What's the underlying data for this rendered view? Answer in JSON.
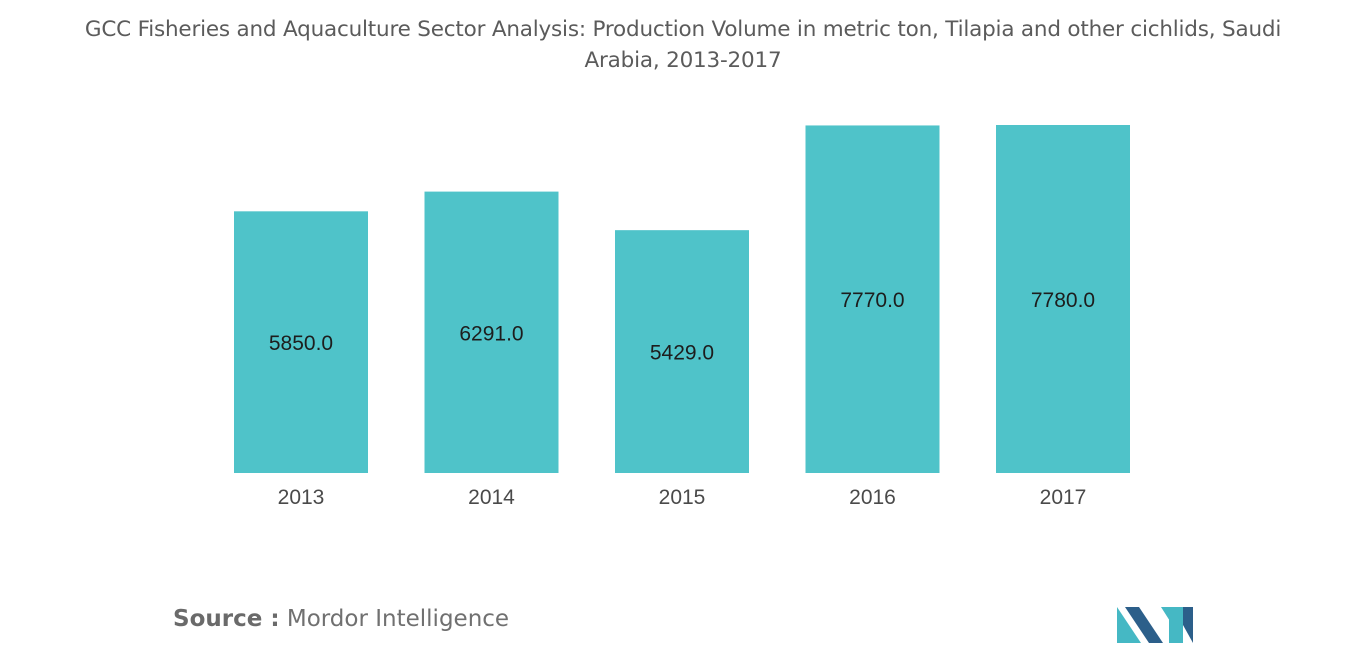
{
  "chart_data": {
    "type": "bar",
    "title_lines": [
      "GCC Fisheries and Aquaculture Sector Analysis: Production Volume in metric ton, Tilapia and other cichlids, Saudi",
      "Arabia, 2013-2017"
    ],
    "categories": [
      "2013",
      "2014",
      "2015",
      "2016",
      "2017"
    ],
    "values": [
      5850.0,
      6291.0,
      5429.0,
      7770.0,
      7780.0
    ],
    "value_labels": [
      "5850.0",
      "6291.0",
      "5429.0",
      "7770.0",
      "7780.0"
    ],
    "xlabel": "",
    "ylabel": "",
    "ylim": [
      0,
      7780
    ],
    "grid": false,
    "legend": "none",
    "bar_color": "#4fc3c9"
  },
  "footer": {
    "source_key": "Source :",
    "source_value": "Mordor Intelligence",
    "logo_icon": "mordor-intelligence-logo-icon",
    "logo_colors": [
      "#2c5f8a",
      "#45b8c4"
    ]
  }
}
